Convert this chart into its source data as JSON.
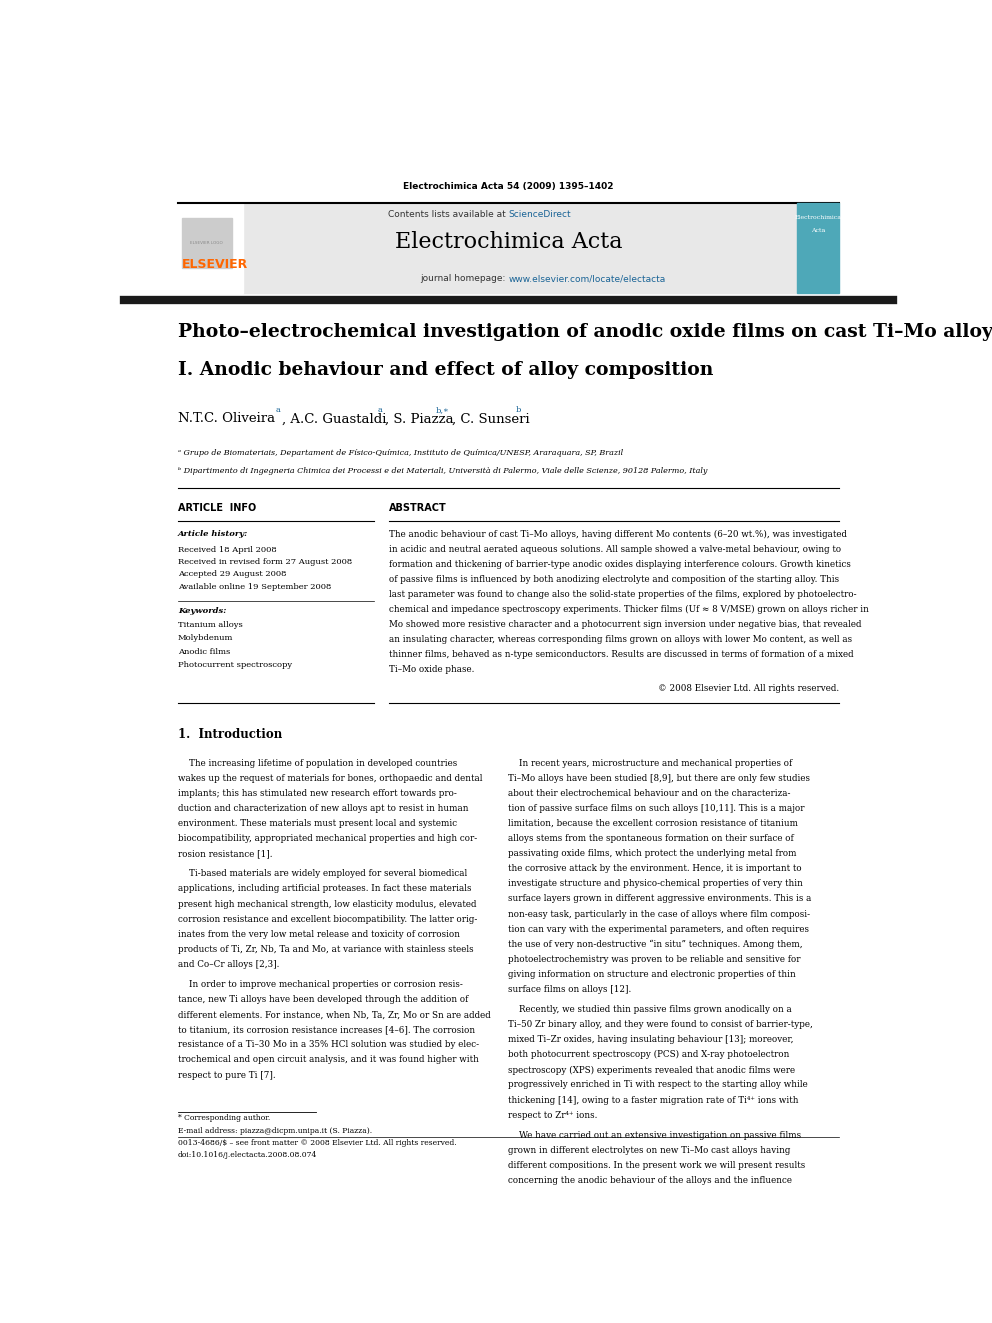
{
  "page_width": 9.92,
  "page_height": 13.23,
  "journal_ref": "Electrochimica Acta 54 (2009) 1395–1402",
  "contents_text": "Contents lists available at ",
  "sciencedirect_text": "ScienceDirect",
  "journal_name": "Electrochimica Acta",
  "journal_homepage_prefix": "journal homepage: ",
  "journal_homepage_url": "www.elsevier.com/locate/electacta",
  "title_line1": "Photo–electrochemical investigation of anodic oxide films on cast Ti–Mo alloys.",
  "title_line2": "I. Anodic behaviour and effect of alloy composition",
  "affil_a": "ᵃ Grupo de Biomateriais, Departament de Físico-Química, Instituto de Química/UNESP, Araraquara, SP, Brazil",
  "affil_b": "ᵇ Dipartimento di Ingegneria Chimica dei Processi e dei Materiali, Università di Palermo, Viale delle Scienze, 90128 Palermo, Italy",
  "article_info_title": "ARTICLE  INFO",
  "abstract_title": "ABSTRACT",
  "article_history_title": "Article history:",
  "received1": "Received 18 April 2008",
  "received2": "Received in revised form 27 August 2008",
  "accepted": "Accepted 29 August 2008",
  "available": "Available online 19 September 2008",
  "keywords_title": "Keywords:",
  "keywords": [
    "Titanium alloys",
    "Molybdenum",
    "Anodic films",
    "Photocurrent spectroscopy"
  ],
  "abstract_lines": [
    "The anodic behaviour of cast Ti–Mo alloys, having different Mo contents (6–20 wt.%), was investigated",
    "in acidic and neutral aerated aqueous solutions. All sample showed a valve-metal behaviour, owing to",
    "formation and thickening of barrier-type anodic oxides displaying interference colours. Growth kinetics",
    "of passive films is influenced by both anodizing electrolyte and composition of the starting alloy. This",
    "last parameter was found to change also the solid-state properties of the films, explored by photoelectro-",
    "chemical and impedance spectroscopy experiments. Thicker films (Uf ≈ 8 V/MSE) grown on alloys richer in",
    "Mo showed more resistive character and a photocurrent sign inversion under negative bias, that revealed",
    "an insulating character, whereas corresponding films grown on alloys with lower Mo content, as well as",
    "thinner films, behaved as n-type semiconductors. Results are discussed in terms of formation of a mixed",
    "Ti–Mo oxide phase."
  ],
  "copyright": "© 2008 Elsevier Ltd. All rights reserved.",
  "section1_title": "1.  Introduction",
  "c1_lines_p1": [
    "    The increasing lifetime of population in developed countries",
    "wakes up the request of materials for bones, orthopaedic and dental",
    "implants; this has stimulated new research effort towards pro-",
    "duction and characterization of new alloys apt to resist in human",
    "environment. These materials must present local and systemic",
    "biocompatibility, appropriated mechanical properties and high cor-",
    "rosion resistance [1]."
  ],
  "c1_lines_p2": [
    "    Ti-based materials are widely employed for several biomedical",
    "applications, including artificial proteases. In fact these materials",
    "present high mechanical strength, low elasticity modulus, elevated",
    "corrosion resistance and excellent biocompatibility. The latter orig-",
    "inates from the very low metal release and toxicity of corrosion",
    "products of Ti, Zr, Nb, Ta and Mo, at variance with stainless steels",
    "and Co–Cr alloys [2,3]."
  ],
  "c1_lines_p3": [
    "    In order to improve mechanical properties or corrosion resis-",
    "tance, new Ti alloys have been developed through the addition of",
    "different elements. For instance, when Nb, Ta, Zr, Mo or Sn are added",
    "to titanium, its corrosion resistance increases [4–6]. The corrosion",
    "resistance of a Ti–30 Mo in a 35% HCl solution was studied by elec-",
    "trochemical and open circuit analysis, and it was found higher with",
    "respect to pure Ti [7]."
  ],
  "c2_lines_p1": [
    "    In recent years, microstructure and mechanical properties of",
    "Ti–Mo alloys have been studied [8,9], but there are only few studies",
    "about their electrochemical behaviour and on the characteriza-",
    "tion of passive surface films on such alloys [10,11]. This is a major",
    "limitation, because the excellent corrosion resistance of titanium",
    "alloys stems from the spontaneous formation on their surface of",
    "passivating oxide films, which protect the underlying metal from",
    "the corrosive attack by the environment. Hence, it is important to",
    "investigate structure and physico-chemical properties of very thin",
    "surface layers grown in different aggressive environments. This is a",
    "non-easy task, particularly in the case of alloys where film composi-",
    "tion can vary with the experimental parameters, and often requires",
    "the use of very non-destructive “in situ” techniques. Among them,",
    "photoelectrochemistry was proven to be reliable and sensitive for",
    "giving information on structure and electronic properties of thin",
    "surface films on alloys [12]."
  ],
  "c2_lines_p2": [
    "    Recently, we studied thin passive films grown anodically on a",
    "Ti–50 Zr binary alloy, and they were found to consist of barrier-type,",
    "mixed Ti–Zr oxides, having insulating behaviour [13]; moreover,",
    "both photocurrent spectroscopy (PCS) and X-ray photoelectron",
    "spectroscopy (XPS) experiments revealed that anodic films were",
    "progressively enriched in Ti with respect to the starting alloy while",
    "thickening [14], owing to a faster migration rate of Ti⁴⁺ ions with",
    "respect to Zr⁴⁺ ions."
  ],
  "c2_lines_p3": [
    "    We have carried out an extensive investigation on passive films",
    "grown in different electrolytes on new Ti–Mo cast alloys having",
    "different compositions. In the present work we will present results",
    "concerning the anodic behaviour of the alloys and the influence"
  ],
  "corresponding_author_note": "* Corresponding author.",
  "email_note": "E-mail address: piazza@dicpm.unipa.it (S. Piazza).",
  "footer_line1": "0013-4686/$ – see front matter © 2008 Elsevier Ltd. All rights reserved.",
  "footer_line2": "doi:10.1016/j.electacta.2008.08.074",
  "elsevier_color": "#FF6600",
  "sciencedirect_color": "#1a6496",
  "url_color": "#1a6496",
  "link_color": "#1a6496",
  "header_bg": "#E8E8E8",
  "cover_color": "#4EA8B8",
  "dark_bar_color": "#1a1a1a"
}
